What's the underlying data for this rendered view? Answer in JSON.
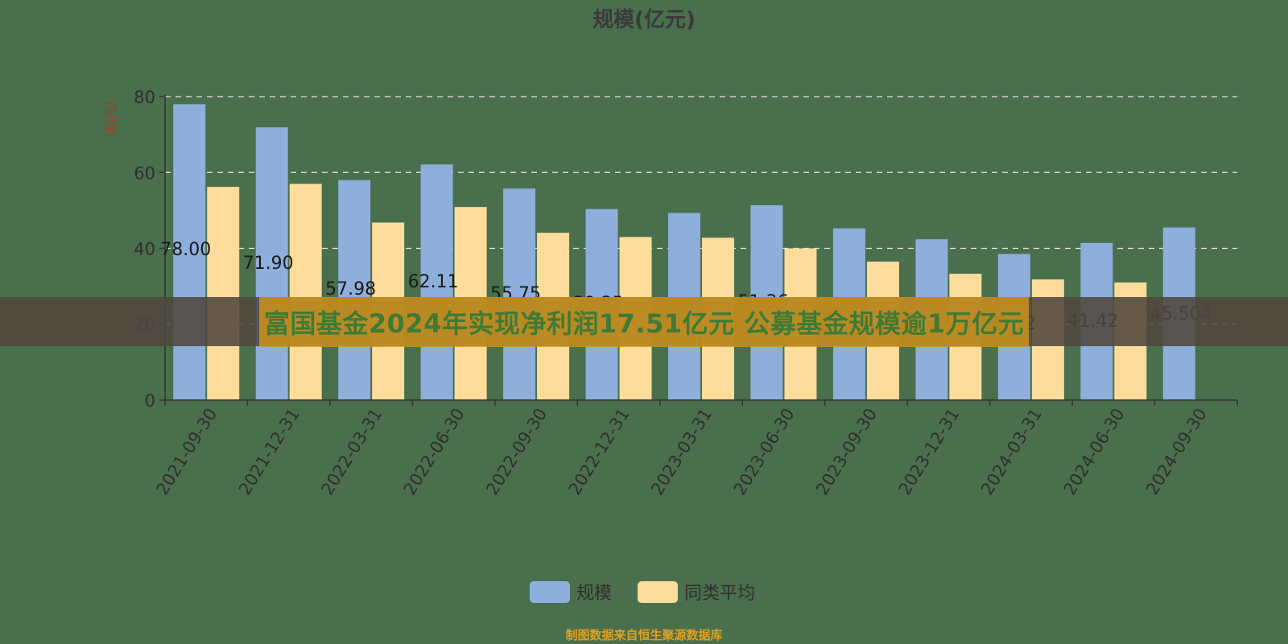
{
  "chart_data": {
    "type": "bar",
    "title": "规模(亿元)",
    "ylabel": "(亿元)",
    "xlabel": "",
    "ylim": [
      0,
      80
    ],
    "yticks": [
      0,
      20,
      40,
      60,
      80
    ],
    "grid": true,
    "legend_position": "bottom",
    "categories": [
      "2021-09-30",
      "2021-12-31",
      "2022-03-31",
      "2022-06-30",
      "2022-09-30",
      "2022-12-31",
      "2023-03-31",
      "2023-06-30",
      "2023-09-30",
      "2023-12-31",
      "2024-03-31",
      "2024-06-30",
      "2024-09-30"
    ],
    "series": [
      {
        "name": "规模",
        "color": "#8eaedc",
        "values": [
          78.0,
          71.9,
          57.98,
          62.11,
          55.75,
          50.35,
          49.33,
          51.36,
          45.26,
          42.41,
          38.52,
          41.42,
          45.5
        ],
        "labels": [
          "78.00",
          "71.90",
          "57.98",
          "62.11",
          "55.75",
          "50.35",
          "49.33",
          "51.36",
          "45.26",
          "42.41",
          "38.52",
          "41.42",
          "45.504"
        ]
      },
      {
        "name": "同类平均",
        "color": "#fddc9c",
        "values": [
          56.2,
          57.0,
          46.8,
          50.9,
          44.1,
          43.0,
          42.8,
          40.0,
          36.5,
          33.3,
          31.8,
          31.0,
          null
        ]
      }
    ]
  },
  "banner": {
    "text": "富国基金2024年实现净利润17.51亿元 公募基金规模逾1万亿元"
  },
  "footer": {
    "text": "制图数据来自恒生聚源数据库"
  }
}
